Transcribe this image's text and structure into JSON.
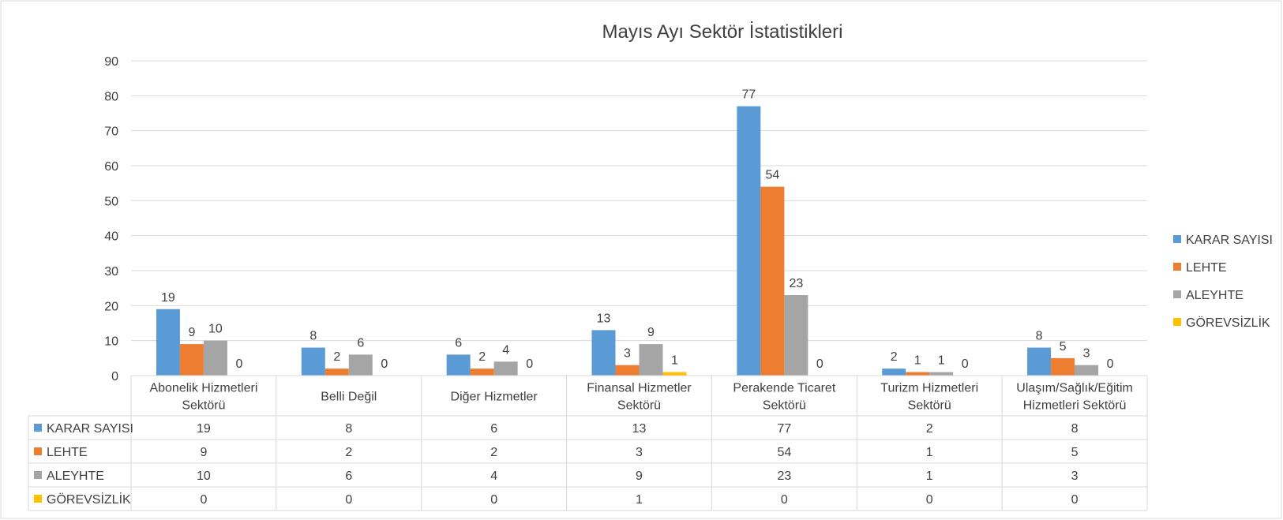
{
  "chart_data": {
    "type": "bar",
    "title": "Mayıs Ayı Sektör İstatistikleri",
    "categories": [
      [
        "Abonelik Hizmetleri",
        "Sektörü"
      ],
      [
        "Belli Değil"
      ],
      [
        "Diğer Hizmetler"
      ],
      [
        "Finansal Hizmetler",
        "Sektörü"
      ],
      [
        "Perakende Ticaret",
        "Sektörü"
      ],
      [
        "Turizm Hizmetleri",
        "Sektörü"
      ],
      [
        "Ulaşım/Sağlık/Eğitim",
        "Hizmetleri Sektörü"
      ]
    ],
    "series": [
      {
        "name": "KARAR SAYISI",
        "color": "#5b9bd5",
        "values": [
          19,
          8,
          6,
          13,
          77,
          2,
          8
        ]
      },
      {
        "name": "LEHTE",
        "color": "#ed7d31",
        "values": [
          9,
          2,
          2,
          3,
          54,
          1,
          5
        ]
      },
      {
        "name": "ALEYHTE",
        "color": "#a5a5a5",
        "values": [
          10,
          6,
          4,
          9,
          23,
          1,
          3
        ]
      },
      {
        "name": "GÖREVSİZLİK",
        "color": "#ffc000",
        "values": [
          0,
          0,
          0,
          1,
          0,
          0,
          0
        ]
      }
    ],
    "ylim": [
      0,
      90
    ],
    "yticks": [
      0,
      10,
      20,
      30,
      40,
      50,
      60,
      70,
      80,
      90
    ],
    "grid": true,
    "legend_position": "right",
    "data_table": true,
    "data_labels": true
  }
}
